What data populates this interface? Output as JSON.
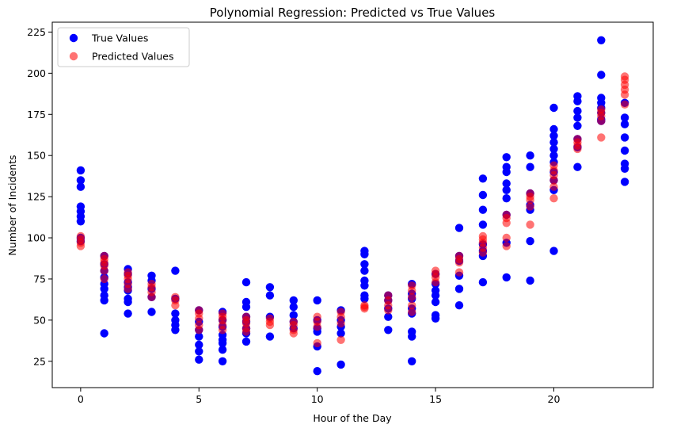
{
  "chart_data": {
    "type": "scatter",
    "title": "Polynomial Regression: Predicted vs True Values",
    "xlabel": "Hour of the Day",
    "ylabel": "Number of Incidents",
    "xlim": [
      -1.2,
      24.2
    ],
    "ylim": [
      9,
      231
    ],
    "xticks": [
      0,
      5,
      10,
      15,
      20
    ],
    "yticks": [
      25,
      50,
      75,
      100,
      125,
      150,
      175,
      200,
      225
    ],
    "grid": false,
    "legend_position": "top-left",
    "series": [
      {
        "name": "True Values",
        "color": "#0000ff",
        "opacity": 1.0,
        "points": [
          [
            0,
            141
          ],
          [
            0,
            135
          ],
          [
            0,
            131
          ],
          [
            0,
            119
          ],
          [
            0,
            116
          ],
          [
            0,
            113
          ],
          [
            0,
            110
          ],
          [
            0,
            100
          ],
          [
            0,
            98
          ],
          [
            1,
            89
          ],
          [
            1,
            84
          ],
          [
            1,
            80
          ],
          [
            1,
            76
          ],
          [
            1,
            72
          ],
          [
            1,
            69
          ],
          [
            1,
            65
          ],
          [
            1,
            62
          ],
          [
            1,
            42
          ],
          [
            2,
            81
          ],
          [
            2,
            78
          ],
          [
            2,
            73
          ],
          [
            2,
            70
          ],
          [
            2,
            68
          ],
          [
            2,
            63
          ],
          [
            2,
            61
          ],
          [
            2,
            54
          ],
          [
            3,
            77
          ],
          [
            3,
            74
          ],
          [
            3,
            69
          ],
          [
            3,
            64
          ],
          [
            3,
            55
          ],
          [
            4,
            80
          ],
          [
            4,
            63
          ],
          [
            4,
            54
          ],
          [
            4,
            50
          ],
          [
            4,
            47
          ],
          [
            4,
            44
          ],
          [
            5,
            56
          ],
          [
            5,
            49
          ],
          [
            5,
            44
          ],
          [
            5,
            40
          ],
          [
            5,
            35
          ],
          [
            5,
            31
          ],
          [
            5,
            26
          ],
          [
            6,
            55
          ],
          [
            6,
            50
          ],
          [
            6,
            46
          ],
          [
            6,
            41
          ],
          [
            6,
            38
          ],
          [
            6,
            36
          ],
          [
            6,
            32
          ],
          [
            6,
            25
          ],
          [
            7,
            73
          ],
          [
            7,
            61
          ],
          [
            7,
            58
          ],
          [
            7,
            52
          ],
          [
            7,
            49
          ],
          [
            7,
            45
          ],
          [
            7,
            42
          ],
          [
            7,
            37
          ],
          [
            8,
            70
          ],
          [
            8,
            65
          ],
          [
            8,
            52
          ],
          [
            8,
            40
          ],
          [
            9,
            62
          ],
          [
            9,
            58
          ],
          [
            9,
            53
          ],
          [
            9,
            49
          ],
          [
            9,
            45
          ],
          [
            10,
            62
          ],
          [
            10,
            50
          ],
          [
            10,
            45
          ],
          [
            10,
            43
          ],
          [
            10,
            34
          ],
          [
            10,
            19
          ],
          [
            11,
            56
          ],
          [
            11,
            50
          ],
          [
            11,
            46
          ],
          [
            11,
            42
          ],
          [
            11,
            23
          ],
          [
            12,
            92
          ],
          [
            12,
            90
          ],
          [
            12,
            84
          ],
          [
            12,
            80
          ],
          [
            12,
            74
          ],
          [
            12,
            71
          ],
          [
            12,
            65
          ],
          [
            12,
            63
          ],
          [
            13,
            65
          ],
          [
            13,
            62
          ],
          [
            13,
            57
          ],
          [
            13,
            52
          ],
          [
            13,
            44
          ],
          [
            14,
            72
          ],
          [
            14,
            66
          ],
          [
            14,
            63
          ],
          [
            14,
            57
          ],
          [
            14,
            54
          ],
          [
            14,
            43
          ],
          [
            14,
            40
          ],
          [
            14,
            25
          ],
          [
            15,
            78
          ],
          [
            15,
            72
          ],
          [
            15,
            68
          ],
          [
            15,
            65
          ],
          [
            15,
            61
          ],
          [
            15,
            53
          ],
          [
            15,
            51
          ],
          [
            16,
            106
          ],
          [
            16,
            89
          ],
          [
            16,
            86
          ],
          [
            16,
            77
          ],
          [
            16,
            69
          ],
          [
            16,
            59
          ],
          [
            17,
            136
          ],
          [
            17,
            126
          ],
          [
            17,
            117
          ],
          [
            17,
            108
          ],
          [
            17,
            96
          ],
          [
            17,
            92
          ],
          [
            17,
            89
          ],
          [
            17,
            73
          ],
          [
            18,
            149
          ],
          [
            18,
            143
          ],
          [
            18,
            140
          ],
          [
            18,
            133
          ],
          [
            18,
            129
          ],
          [
            18,
            124
          ],
          [
            18,
            114
          ],
          [
            18,
            97
          ],
          [
            18,
            76
          ],
          [
            19,
            150
          ],
          [
            19,
            143
          ],
          [
            19,
            127
          ],
          [
            19,
            120
          ],
          [
            19,
            117
          ],
          [
            19,
            98
          ],
          [
            19,
            74
          ],
          [
            20,
            179
          ],
          [
            20,
            166
          ],
          [
            20,
            162
          ],
          [
            20,
            158
          ],
          [
            20,
            154
          ],
          [
            20,
            150
          ],
          [
            20,
            146
          ],
          [
            20,
            140
          ],
          [
            20,
            135
          ],
          [
            20,
            129
          ],
          [
            20,
            92
          ],
          [
            21,
            186
          ],
          [
            21,
            183
          ],
          [
            21,
            177
          ],
          [
            21,
            173
          ],
          [
            21,
            168
          ],
          [
            21,
            160
          ],
          [
            21,
            155
          ],
          [
            21,
            143
          ],
          [
            22,
            220
          ],
          [
            22,
            199
          ],
          [
            22,
            185
          ],
          [
            22,
            182
          ],
          [
            22,
            179
          ],
          [
            22,
            176
          ],
          [
            22,
            172
          ],
          [
            22,
            171
          ],
          [
            23,
            182
          ],
          [
            23,
            173
          ],
          [
            23,
            169
          ],
          [
            23,
            161
          ],
          [
            23,
            153
          ],
          [
            23,
            145
          ],
          [
            23,
            142
          ],
          [
            23,
            134
          ]
        ]
      },
      {
        "name": "Predicted Values",
        "color": "#ff0000",
        "opacity": 0.55,
        "points": [
          [
            0,
            101
          ],
          [
            0,
            99
          ],
          [
            0,
            97
          ],
          [
            0,
            95
          ],
          [
            1,
            89
          ],
          [
            1,
            87
          ],
          [
            1,
            85
          ],
          [
            1,
            83
          ],
          [
            1,
            80
          ],
          [
            1,
            75
          ],
          [
            2,
            79
          ],
          [
            2,
            77
          ],
          [
            2,
            75
          ],
          [
            2,
            72
          ],
          [
            2,
            69
          ],
          [
            3,
            72
          ],
          [
            3,
            70
          ],
          [
            3,
            67
          ],
          [
            3,
            64
          ],
          [
            4,
            64
          ],
          [
            4,
            62
          ],
          [
            4,
            59
          ],
          [
            5,
            56
          ],
          [
            5,
            54
          ],
          [
            5,
            51
          ],
          [
            5,
            47
          ],
          [
            5,
            44
          ],
          [
            6,
            54
          ],
          [
            6,
            52
          ],
          [
            6,
            50
          ],
          [
            6,
            47
          ],
          [
            6,
            44
          ],
          [
            7,
            52
          ],
          [
            7,
            50
          ],
          [
            7,
            48
          ],
          [
            7,
            45
          ],
          [
            7,
            43
          ],
          [
            8,
            51
          ],
          [
            8,
            49
          ],
          [
            8,
            47
          ],
          [
            9,
            49
          ],
          [
            9,
            47
          ],
          [
            9,
            44
          ],
          [
            9,
            42
          ],
          [
            10,
            52
          ],
          [
            10,
            49
          ],
          [
            10,
            46
          ],
          [
            10,
            36
          ],
          [
            11,
            55
          ],
          [
            11,
            52
          ],
          [
            11,
            48
          ],
          [
            11,
            38
          ],
          [
            12,
            59
          ],
          [
            12,
            58
          ],
          [
            12,
            57
          ],
          [
            13,
            65
          ],
          [
            13,
            62
          ],
          [
            13,
            59
          ],
          [
            13,
            56
          ],
          [
            14,
            71
          ],
          [
            14,
            68
          ],
          [
            14,
            64
          ],
          [
            14,
            59
          ],
          [
            14,
            55
          ],
          [
            15,
            80
          ],
          [
            15,
            78
          ],
          [
            15,
            76
          ],
          [
            15,
            73
          ],
          [
            16,
            89
          ],
          [
            16,
            87
          ],
          [
            16,
            85
          ],
          [
            16,
            79
          ],
          [
            17,
            101
          ],
          [
            17,
            99
          ],
          [
            17,
            97
          ],
          [
            17,
            94
          ],
          [
            17,
            91
          ],
          [
            18,
            114
          ],
          [
            18,
            112
          ],
          [
            18,
            109
          ],
          [
            18,
            100
          ],
          [
            18,
            95
          ],
          [
            19,
            127
          ],
          [
            19,
            125
          ],
          [
            19,
            123
          ],
          [
            19,
            119
          ],
          [
            19,
            108
          ],
          [
            20,
            144
          ],
          [
            20,
            141
          ],
          [
            20,
            138
          ],
          [
            20,
            135
          ],
          [
            20,
            131
          ],
          [
            20,
            124
          ],
          [
            21,
            160
          ],
          [
            21,
            158
          ],
          [
            21,
            156
          ],
          [
            21,
            154
          ],
          [
            22,
            178
          ],
          [
            22,
            176
          ],
          [
            22,
            174
          ],
          [
            22,
            171
          ],
          [
            22,
            161
          ],
          [
            23,
            198
          ],
          [
            23,
            196
          ],
          [
            23,
            193
          ],
          [
            23,
            190
          ],
          [
            23,
            187
          ],
          [
            23,
            181
          ]
        ]
      }
    ]
  }
}
